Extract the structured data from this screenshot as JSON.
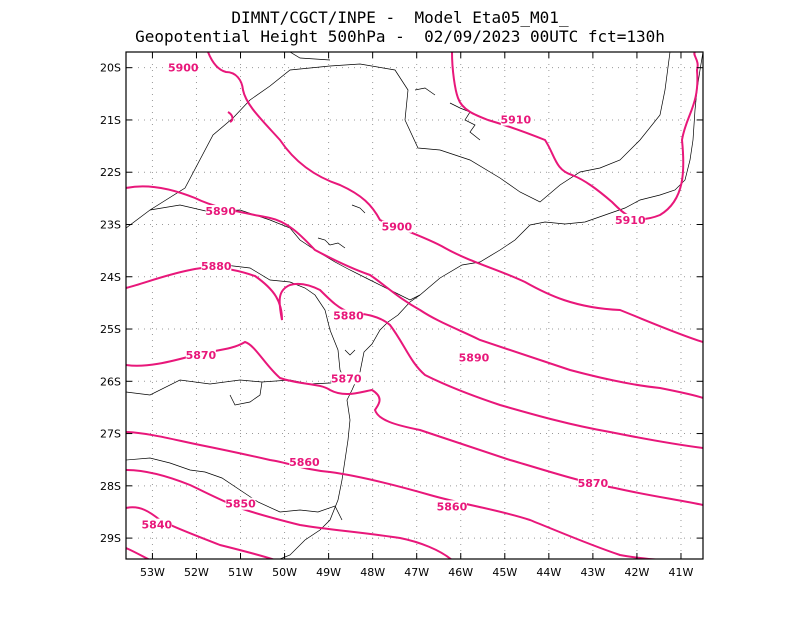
{
  "title_line1": "DIMNT/CGCT/INPE -  Model Eta05_M01_",
  "title_line2": "Geopotential Height 500hPa -  02/09/2023 00UTC fct=130h",
  "colors": {
    "contour": "#e8177a",
    "border": "#000000",
    "grid": "#999999"
  },
  "map": {
    "lon_range": [
      -53.6,
      -40.5
    ],
    "lat_range": [
      -29.4,
      -19.7
    ],
    "lat_ticks": [
      {
        "value": -20,
        "label": "20S"
      },
      {
        "value": -21,
        "label": "21S"
      },
      {
        "value": -22,
        "label": "22S"
      },
      {
        "value": -23,
        "label": "23S"
      },
      {
        "value": -24,
        "label": "24S"
      },
      {
        "value": -25,
        "label": "25S"
      },
      {
        "value": -26,
        "label": "26S"
      },
      {
        "value": -27,
        "label": "27S"
      },
      {
        "value": -28,
        "label": "28S"
      },
      {
        "value": -29,
        "label": "29S"
      }
    ],
    "lon_ticks": [
      {
        "value": -53,
        "label": "53W"
      },
      {
        "value": -52,
        "label": "52W"
      },
      {
        "value": -51,
        "label": "51W"
      },
      {
        "value": -50,
        "label": "50W"
      },
      {
        "value": -49,
        "label": "49W"
      },
      {
        "value": -48,
        "label": "48W"
      },
      {
        "value": -47,
        "label": "47W"
      },
      {
        "value": -46,
        "label": "46W"
      },
      {
        "value": -45,
        "label": "45W"
      },
      {
        "value": -44,
        "label": "44W"
      },
      {
        "value": -43,
        "label": "43W"
      },
      {
        "value": -42,
        "label": "42W"
      },
      {
        "value": -41,
        "label": "41W"
      }
    ]
  },
  "contour_labels": [
    {
      "text": "5900",
      "lon": -52.3,
      "lat": -20.05
    },
    {
      "text": "5910",
      "lon": -44.75,
      "lat": -21.05
    },
    {
      "text": "5890",
      "lon": -51.45,
      "lat": -22.8
    },
    {
      "text": "5900",
      "lon": -47.45,
      "lat": -23.1
    },
    {
      "text": "5910",
      "lon": -42.15,
      "lat": -22.97
    },
    {
      "text": "5880",
      "lon": -51.55,
      "lat": -23.85
    },
    {
      "text": "5880",
      "lon": -48.55,
      "lat": -24.8
    },
    {
      "text": "5870",
      "lon": -51.9,
      "lat": -25.55
    },
    {
      "text": "5890",
      "lon": -45.7,
      "lat": -25.6
    },
    {
      "text": "5870",
      "lon": -48.6,
      "lat": -26.0
    },
    {
      "text": "5860",
      "lon": -49.55,
      "lat": -27.6
    },
    {
      "text": "5870",
      "lon": -43.0,
      "lat": -28.0
    },
    {
      "text": "5850",
      "lon": -51.0,
      "lat": -28.4
    },
    {
      "text": "5860",
      "lon": -46.2,
      "lat": -28.45
    },
    {
      "text": "5840",
      "lon": -52.9,
      "lat": -28.8
    }
  ]
}
